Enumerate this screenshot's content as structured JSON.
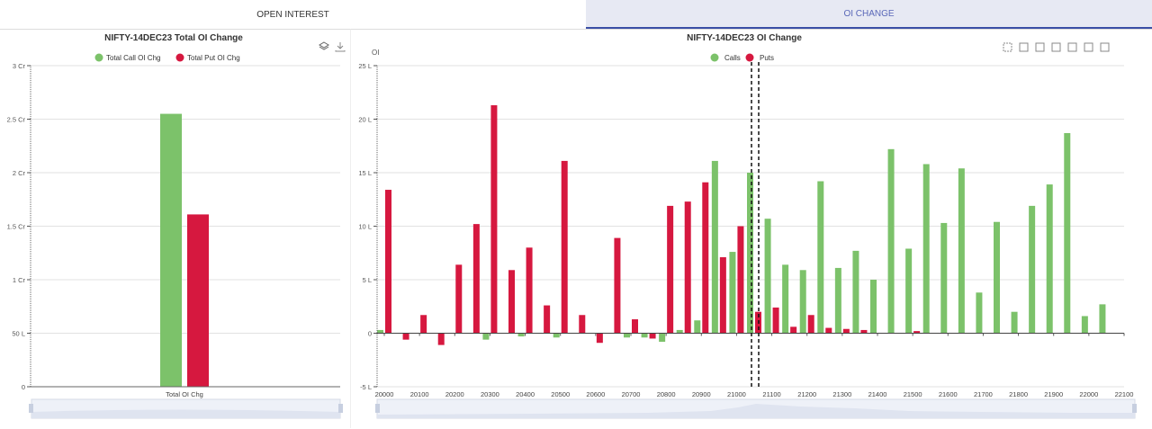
{
  "tabs": [
    {
      "label": "OPEN INTEREST",
      "active": false
    },
    {
      "label": "OI CHANGE",
      "active": true
    }
  ],
  "colors": {
    "calls": "#7cc26a",
    "puts": "#d6183f",
    "accent": "#3b4fa6"
  },
  "left_chart": {
    "toolbar_icons": [
      "layers-icon",
      "download-icon"
    ]
  },
  "right_chart": {
    "toolbar_icons": [
      "zoom-select-icon",
      "zoom-reset-icon",
      "line-chart-icon",
      "bar-chart-icon",
      "layers-icon",
      "restore-icon",
      "download-icon"
    ]
  },
  "chart_data": [
    {
      "type": "bar",
      "title": "NIFTY-14DEC23 Total OI Change",
      "categories": [
        "Total OI Chg"
      ],
      "series": [
        {
          "name": "Total Call OI Chg",
          "values": [
            2.55
          ]
        },
        {
          "name": "Total Put OI Chg",
          "values": [
            1.61
          ]
        }
      ],
      "ylim": [
        0,
        3
      ],
      "yticks": [
        0,
        0.5,
        1,
        1.5,
        2,
        2.5,
        3
      ],
      "ytick_labels": [
        "0",
        "50 L",
        "1 Cr",
        "1.5 Cr",
        "2 Cr",
        "2.5 Cr",
        "3 Cr"
      ],
      "legend": "top-center",
      "grid": true
    },
    {
      "type": "bar",
      "title": "NIFTY-14DEC23 OI Change",
      "ylabel": "OI",
      "x": [
        20000,
        20050,
        20100,
        20150,
        20200,
        20250,
        20300,
        20350,
        20400,
        20450,
        20500,
        20550,
        20600,
        20650,
        20700,
        20750,
        20800,
        20850,
        20900,
        20950,
        21000,
        21050,
        21100,
        21150,
        21200,
        21250,
        21300,
        21350,
        21400,
        21450,
        21500,
        21550,
        21600,
        21650,
        21700,
        21750,
        21800,
        21850,
        21900,
        21950,
        22000,
        22050,
        22100
      ],
      "series": [
        {
          "name": "Calls",
          "values": [
            0.3,
            0,
            0,
            0,
            0,
            0,
            -0.6,
            0,
            -0.3,
            0,
            -0.4,
            0,
            0,
            0,
            -0.4,
            -0.4,
            -0.8,
            0.3,
            1.2,
            16.1,
            7.6,
            15,
            10.7,
            6.4,
            5.9,
            14.2,
            6.1,
            7.7,
            5,
            17.2,
            7.9,
            15.8,
            10.3,
            15.4,
            3.8,
            10.4,
            2,
            11.9,
            13.9,
            18.7,
            1.6,
            2.7,
            0
          ]
        },
        {
          "name": "Puts",
          "values": [
            13.4,
            -0.6,
            1.7,
            -1.1,
            6.4,
            10.2,
            21.3,
            5.9,
            8,
            2.6,
            16.1,
            1.7,
            -0.9,
            8.9,
            1.3,
            -0.5,
            11.9,
            12.3,
            14.1,
            7.1,
            10,
            2,
            2.4,
            0.6,
            1.7,
            0.5,
            0.4,
            0.3,
            0,
            0,
            0.2,
            0,
            0,
            0,
            0,
            0,
            0,
            0,
            0,
            0,
            0,
            0,
            0
          ]
        }
      ],
      "ylim": [
        -5,
        25
      ],
      "yticks": [
        -5,
        0,
        5,
        10,
        15,
        20,
        25
      ],
      "ytick_labels": [
        "-5 L",
        "0",
        "5 L",
        "10 L",
        "15 L",
        "20 L",
        "25 L"
      ],
      "xtick_labels": [
        "20000",
        "20100",
        "20200",
        "20300",
        "20400",
        "20500",
        "20600",
        "20700",
        "20800",
        "20900",
        "21000",
        "21100",
        "21200",
        "21300",
        "21400",
        "21500",
        "21600",
        "21700",
        "21800",
        "21900",
        "22000",
        "22100"
      ],
      "legend": "top-center",
      "grid": true
    }
  ]
}
